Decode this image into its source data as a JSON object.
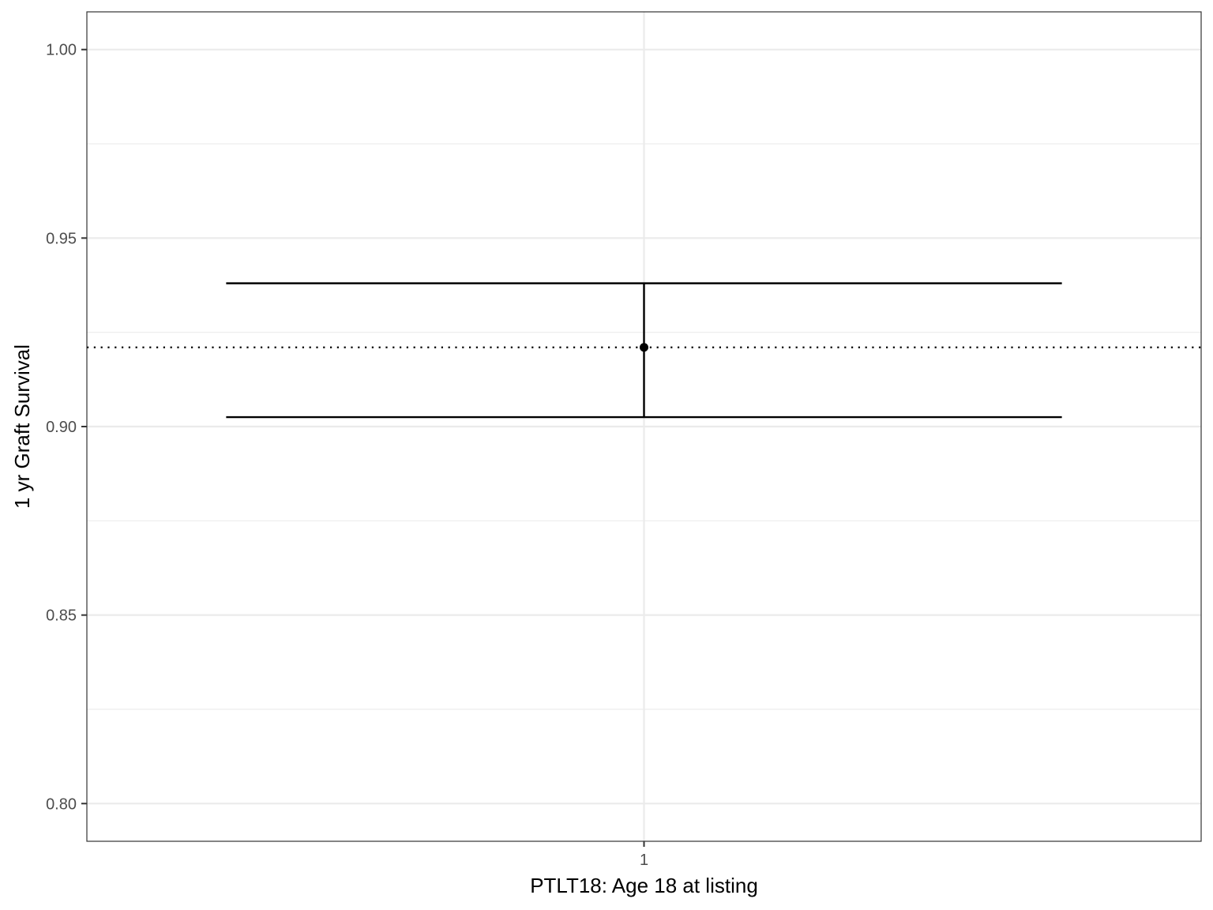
{
  "chart_data": {
    "type": "errorbar",
    "title": "",
    "xlabel": "PTLT18: Age 18 at listing",
    "ylabel": "1 yr Graft Survival",
    "categories": [
      "1"
    ],
    "ylim": [
      0.79,
      1.01
    ],
    "yticks": [
      "0.80",
      "0.85",
      "0.90",
      "0.95",
      "1.00"
    ],
    "grid": true,
    "legend": "none",
    "series": [
      {
        "estimate": [
          0.921
        ],
        "lower": [
          0.9025
        ],
        "upper": [
          0.938
        ]
      }
    ],
    "reference_line": {
      "y": 0.921,
      "style": "dotted"
    },
    "colors": {
      "mark": "#000000",
      "grid": "#ebebeb",
      "panel_border": "#333333",
      "tick_text": "#4d4d4d"
    }
  }
}
